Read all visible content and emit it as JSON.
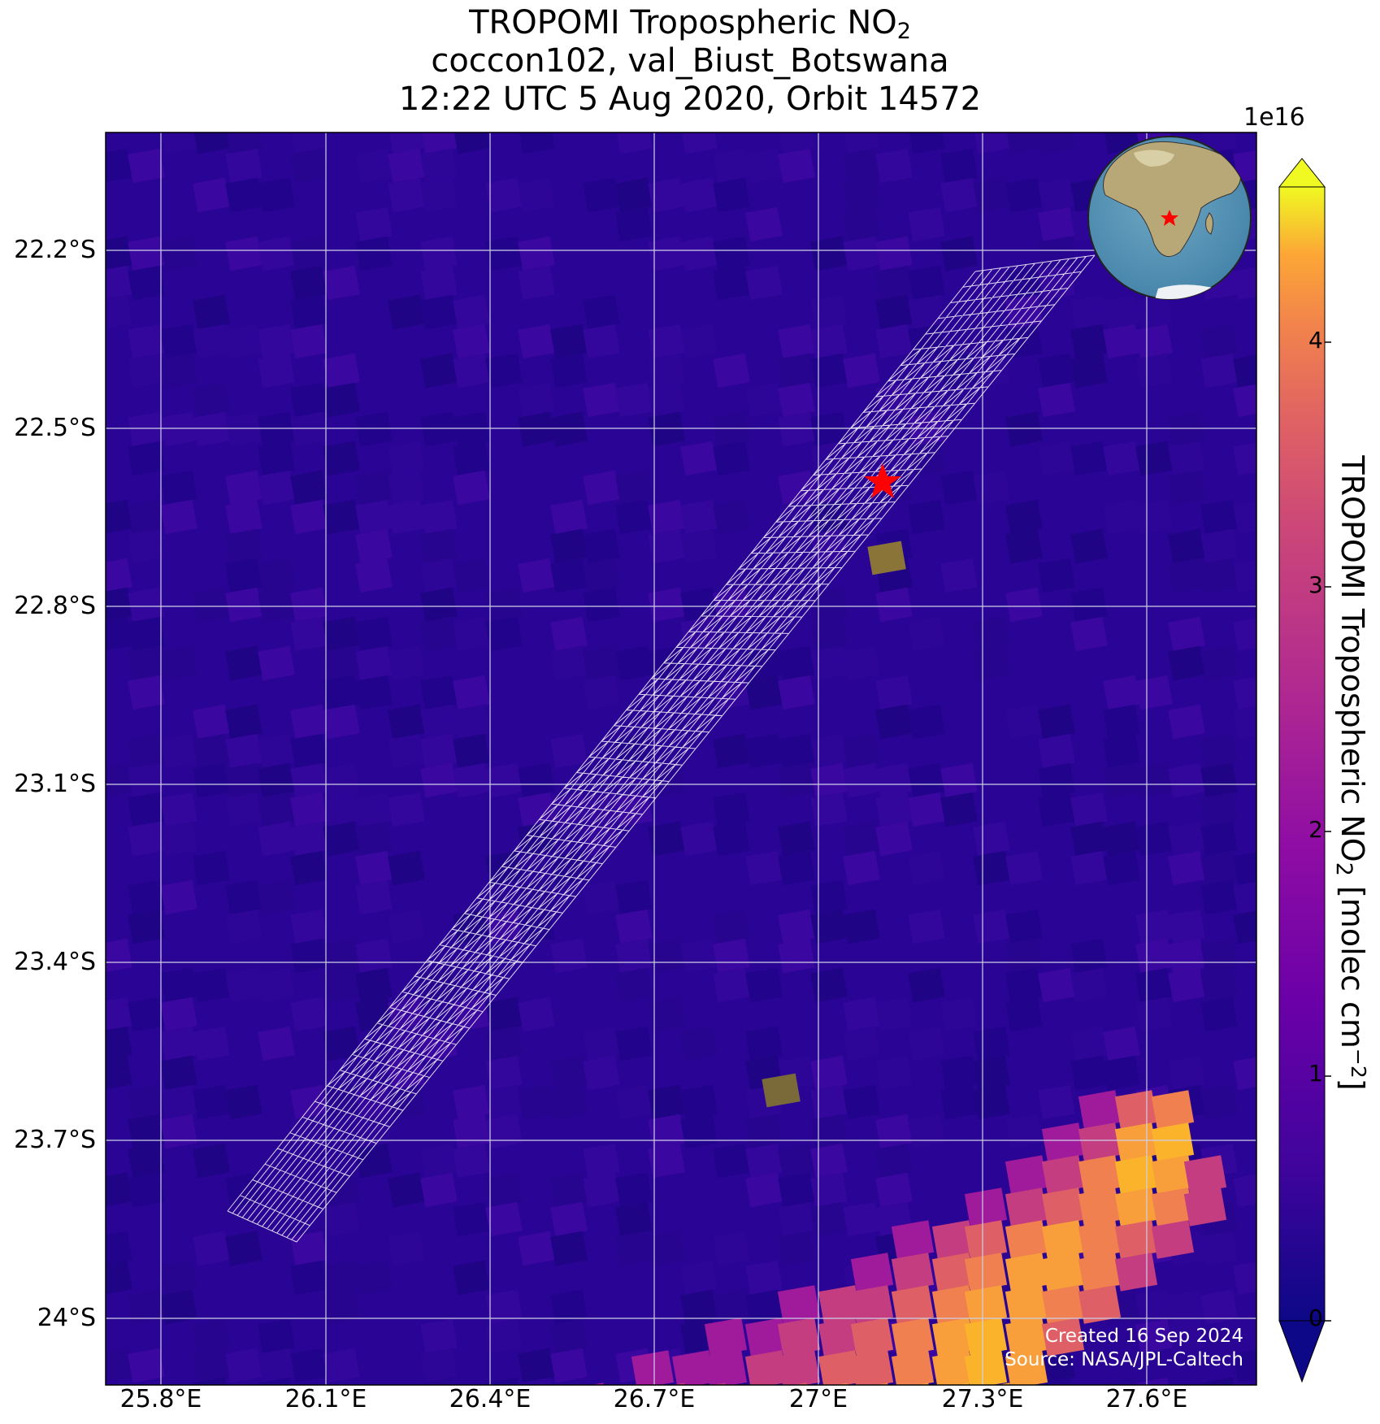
{
  "title": {
    "line1_prefix": "TROPOMI Tropospheric NO",
    "line1_sub": "2",
    "line2": "coccon102, val_Biust_Botswana",
    "line3": "12:22 UTC 5 Aug 2020, Orbit 14572"
  },
  "map": {
    "background_color": "#2a0494",
    "grid_color": "#cfcfe6",
    "lat_labels": [
      "22.2°S",
      "22.5°S",
      "22.8°S",
      "23.1°S",
      "23.4°S",
      "23.7°S",
      "24°S"
    ],
    "lon_labels": [
      "25.8°E",
      "26.1°E",
      "26.4°E",
      "26.7°E",
      "27°E",
      "27.3°E",
      "27.6°E"
    ],
    "station_marker": {
      "name": "val_Biust_Botswana",
      "color": "#ff0000",
      "lon": 27.12,
      "lat": -22.59,
      "shape": "star-icon"
    }
  },
  "colorbar": {
    "colormap": "plasma",
    "exponent_label": "1e16",
    "ticks": [
      "0",
      "1",
      "2",
      "3",
      "4"
    ],
    "label_prefix": "TROPOMI Tropospheric NO",
    "label_sub": "2",
    "label_mid": " [molec cm",
    "label_sup": "−2",
    "label_suffix": "]"
  },
  "inset_globe": {
    "marker_color": "#ff0000",
    "icon": "globe-icon"
  },
  "footer": {
    "created": "Created 16 Sep 2024",
    "source": "Source: NASA/JPL-Caltech"
  }
}
